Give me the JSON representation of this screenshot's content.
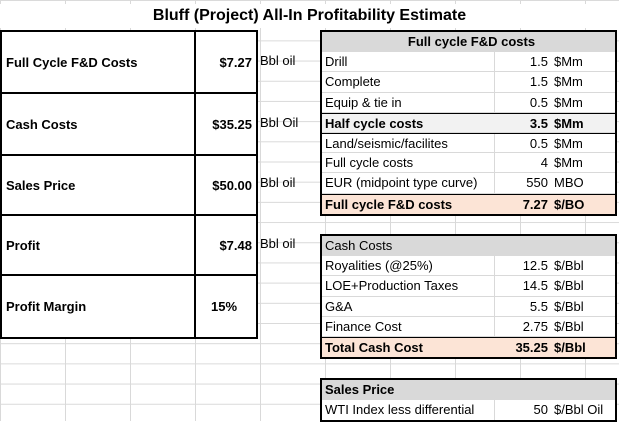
{
  "title": "Bluff (Project) All-In Profitability Estimate",
  "summary": [
    {
      "label": "Full Cycle F&D Costs",
      "value": "$7.27",
      "unit": "Bbl oil"
    },
    {
      "label": "Cash Costs",
      "value": "$35.25",
      "unit": "Bbl Oil"
    },
    {
      "label": "Sales Price",
      "value": "$50.00",
      "unit": "Bbl oil"
    },
    {
      "label": "Profit",
      "value": "$7.48",
      "unit": "Bbl oil"
    },
    {
      "label": "Profit Margin",
      "value": "15%",
      "unit": ""
    }
  ],
  "fd_table": {
    "header": "Full cycle F&D costs",
    "rows": [
      {
        "label": "Drill",
        "value": "1.5",
        "unit": "$Mm"
      },
      {
        "label": "Complete",
        "value": "1.5",
        "unit": "$Mm"
      },
      {
        "label": "Equip & tie in",
        "value": "0.5",
        "unit": "$Mm"
      },
      {
        "label": "Half cycle costs",
        "value": "3.5",
        "unit": "$Mm"
      },
      {
        "label": "Land/seismic/facilites",
        "value": "0.5",
        "unit": "$Mm"
      },
      {
        "label": "Full cycle costs",
        "value": "4",
        "unit": "$Mm"
      },
      {
        "label": "EUR (midpoint type curve)",
        "value": "550",
        "unit": "MBO"
      },
      {
        "label": "Full cycle F&D costs",
        "value": "7.27",
        "unit": "$/BO"
      }
    ]
  },
  "cash_table": {
    "header": "Cash Costs",
    "rows": [
      {
        "label": "Royalities (@25%)",
        "value": "12.5",
        "unit": "$/Bbl"
      },
      {
        "label": "LOE+Production Taxes",
        "value": "14.5",
        "unit": "$/Bbl"
      },
      {
        "label": "G&A",
        "value": "5.5",
        "unit": "$/Bbl"
      },
      {
        "label": "Finance Cost",
        "value": "2.75",
        "unit": "$/Bbl"
      },
      {
        "label": "Total Cash Cost",
        "value": "35.25",
        "unit": "$/Bbl"
      }
    ]
  },
  "sales_table": {
    "header": "Sales Price",
    "rows": [
      {
        "label": "WTI Index less differential",
        "value": "50",
        "unit": "$/Bbl Oil"
      }
    ]
  },
  "colors": {
    "header_gray": "#d9d9d9",
    "highlight_peach": "#fce4d6",
    "gridline": "#d9d9d9"
  }
}
